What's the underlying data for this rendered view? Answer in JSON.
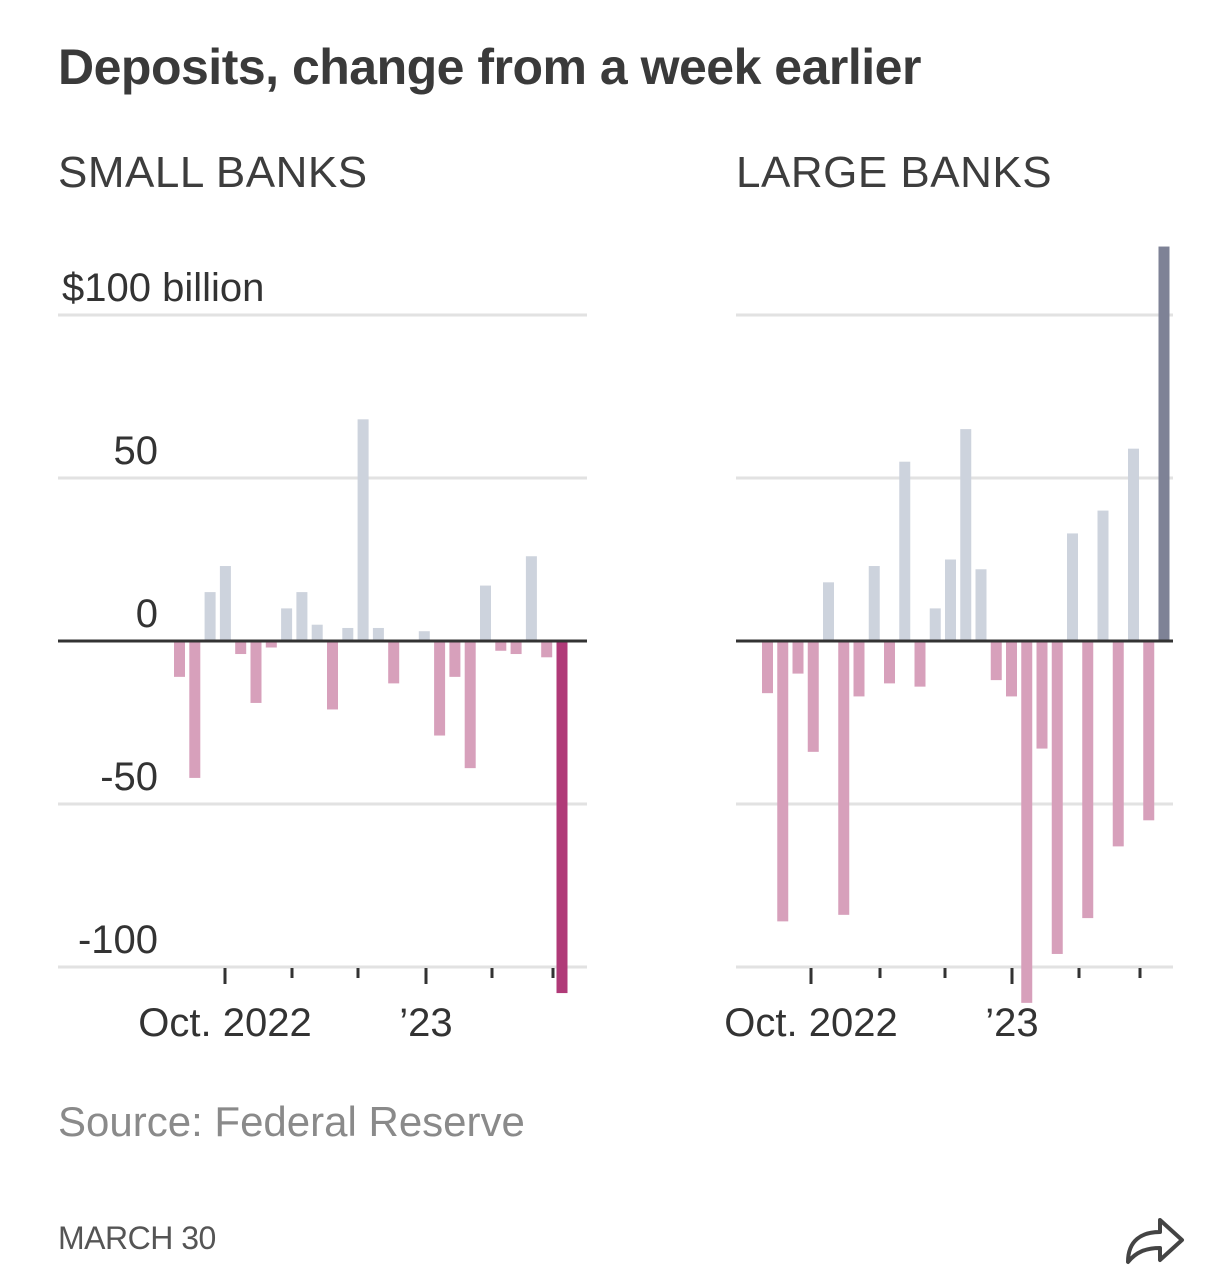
{
  "header": {
    "title": "Deposits, change from a week earlier"
  },
  "footer": {
    "source": "Source: Federal Reserve",
    "date": "MARCH 30",
    "share_icon": "share-arrow-icon"
  },
  "colors": {
    "positive": "#cdd3dd",
    "negative": "#d7a0bb",
    "latest_negative": "#b03a78",
    "latest_positive": "#7e8296",
    "axis": "#333333",
    "grid": "#e2e2e2"
  },
  "chart_data": [
    {
      "type": "bar",
      "title": "SMALL BANKS",
      "ylim": [
        -100,
        100
      ],
      "yticks": [
        100,
        50,
        0,
        -50,
        -100
      ],
      "ytick_labels": [
        "$100 billion",
        "50",
        "0",
        "-50",
        "-100"
      ],
      "xtick_labels": [
        "Oct. 2022",
        "’23"
      ],
      "values": [
        -11,
        -42,
        15,
        23,
        -4,
        -19,
        -2,
        10,
        15,
        5,
        -21,
        4,
        68,
        4,
        -13,
        0,
        3,
        -29,
        -11,
        -39,
        17,
        -3,
        -4,
        26,
        -5,
        -108
      ],
      "highlight_last": true
    },
    {
      "type": "bar",
      "title": "LARGE BANKS",
      "ylim": [
        -100,
        100
      ],
      "yticks": [
        100,
        50,
        0,
        -50,
        -100
      ],
      "xtick_labels": [
        "Oct. 2022",
        "’23"
      ],
      "values": [
        -16,
        -86,
        -10,
        -34,
        18,
        -84,
        -17,
        23,
        -13,
        55,
        -14,
        10,
        25,
        65,
        22,
        -12,
        -17,
        -111,
        -33,
        -96,
        33,
        -85,
        40,
        -63,
        59,
        -55,
        121
      ],
      "highlight_last": true
    }
  ]
}
